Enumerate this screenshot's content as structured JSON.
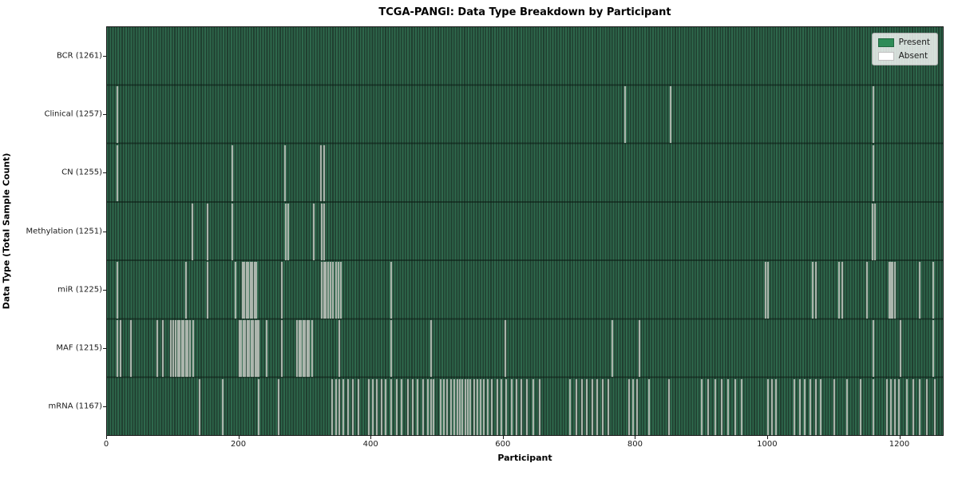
{
  "chart": {
    "title": "TCGA-PANGI: Data Type Breakdown by Participant",
    "xlabel": "Participant",
    "ylabel": "Data Type (Total Sample Count)",
    "legend": {
      "present": "Present",
      "absent": "Absent"
    }
  },
  "chart_data": {
    "type": "heatmap",
    "title": "TCGA-PANGI: Data Type Breakdown by Participant",
    "xlabel": "Participant",
    "ylabel": "Data Type (Total Sample Count)",
    "legend_position": "upper right",
    "legend": [
      {
        "label": "Present",
        "color": "#2e8b57"
      },
      {
        "label": "Absent",
        "color": "#ffffff"
      }
    ],
    "x_axis": {
      "ticks": [
        0,
        200,
        400,
        600,
        800,
        1000,
        1200
      ],
      "range": [
        0,
        1267
      ]
    },
    "total_participants": 1261,
    "rows": [
      {
        "label": "BCR (1261)",
        "data_type": "BCR",
        "present_count": 1261,
        "absent_count": 0,
        "absent_participants": []
      },
      {
        "label": "Clinical (1257)",
        "data_type": "Clinical",
        "present_count": 1257,
        "absent_count": 4,
        "absent_participants": [
          16,
          784,
          853,
          1160
        ]
      },
      {
        "label": "CN (1255)",
        "data_type": "CN",
        "present_count": 1255,
        "absent_count": 6,
        "absent_participants": [
          16,
          189,
          269,
          324,
          329,
          1160
        ]
      },
      {
        "label": "Methylation (1251)",
        "data_type": "Methylation",
        "present_count": 1251,
        "absent_count": 10,
        "absent_participants": [
          129,
          152,
          189,
          270,
          274,
          313,
          325,
          329,
          1158,
          1162
        ]
      },
      {
        "label": "miR (1225)",
        "data_type": "miR",
        "present_count": 1225,
        "absent_count": 36,
        "absent_participants": [
          16,
          120,
          152,
          195,
          205,
          208,
          211,
          214,
          217,
          220,
          223,
          226,
          265,
          325,
          328,
          331,
          334,
          338,
          342,
          346,
          350,
          354,
          430,
          996,
          1000,
          1068,
          1072,
          1108,
          1112,
          1150,
          1183,
          1186,
          1189,
          1192,
          1230,
          1250
        ]
      },
      {
        "label": "MAF (1215)",
        "data_type": "MAF",
        "present_count": 1215,
        "absent_count": 46,
        "absent_participants": [
          16,
          20,
          36,
          76,
          84,
          96,
          100,
          104,
          107,
          110,
          113,
          116,
          119,
          122,
          125,
          130,
          200,
          203,
          206,
          209,
          212,
          215,
          218,
          221,
          224,
          227,
          230,
          241,
          265,
          288,
          291,
          294,
          297,
          300,
          303,
          306,
          310,
          352,
          430,
          490,
          603,
          764,
          805,
          1160,
          1200,
          1250
        ]
      },
      {
        "label": "mRNA (1167)",
        "data_type": "mRNA",
        "present_count": 1167,
        "absent_count": 94,
        "absent_participants": [
          140,
          175,
          230,
          260,
          340,
          346,
          352,
          358,
          365,
          372,
          380,
          396,
          402,
          408,
          415,
          422,
          430,
          438,
          446,
          455,
          462,
          470,
          478,
          486,
          490,
          494,
          505,
          510,
          515,
          520,
          525,
          530,
          534,
          538,
          542,
          546,
          550,
          555,
          560,
          565,
          570,
          576,
          582,
          590,
          596,
          604,
          612,
          620,
          627,
          635,
          645,
          655,
          700,
          710,
          718,
          726,
          734,
          742,
          750,
          758,
          790,
          796,
          802,
          820,
          850,
          900,
          910,
          920,
          930,
          940,
          950,
          960,
          1000,
          1006,
          1012,
          1040,
          1048,
          1056,
          1064,
          1072,
          1080,
          1100,
          1120,
          1140,
          1160,
          1180,
          1186,
          1192,
          1198,
          1210,
          1220,
          1230,
          1240,
          1252
        ]
      }
    ],
    "colors": {
      "present_fill": "#2e8b57",
      "bar_texture_light": "#2e684c",
      "bar_texture_dark": "#203f30",
      "absent_stripe": "#aab4ab",
      "row_separator": "#14291e",
      "axis": "#1a1a1a"
    }
  }
}
